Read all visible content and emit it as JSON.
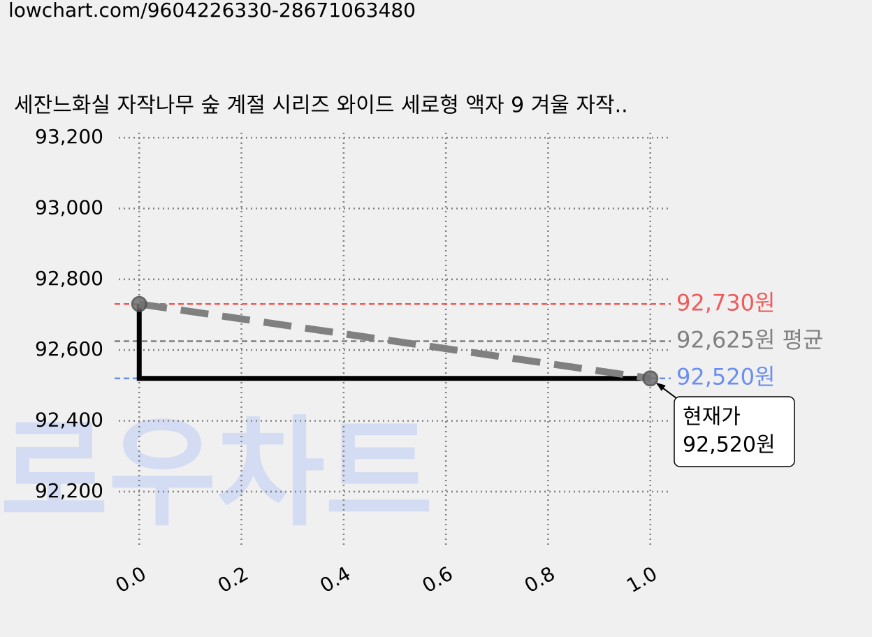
{
  "header": {
    "url": "lowchart.com/9604226330-28671063480"
  },
  "watermark": "로우차트",
  "chart_data": {
    "type": "line",
    "title": "세잔느화실 자작나무 숲 계절 시리즈 와이드 세로형 액자 9 겨울 자작..",
    "x": [
      0,
      1
    ],
    "series": [
      {
        "color": "#000000",
        "values": [
          92730,
          92520
        ],
        "step": "pre"
      },
      {
        "color": "#808080",
        "values": [
          92730,
          92520
        ],
        "dashed": true,
        "markers": true
      }
    ],
    "xlim": [
      -0.04,
      1.04
    ],
    "ylim": [
      92040,
      93214
    ],
    "xticks": [
      {
        "value": 0,
        "label": "0.0"
      },
      0.2,
      0.4,
      0.6,
      0.8,
      {
        "value": 1,
        "label": "1.0"
      }
    ],
    "yticks": [
      {
        "value": 92200,
        "label": "92,200"
      },
      {
        "value": 92400,
        "label": "92,400"
      },
      {
        "value": 92600,
        "label": "92,600"
      },
      {
        "value": 92800,
        "label": "92,800"
      },
      {
        "value": 93000,
        "label": "93,000"
      },
      {
        "value": 93200,
        "label": "93,200"
      }
    ],
    "grid": true,
    "hlines": [
      {
        "value": 92730,
        "label": "92,730원",
        "color": "#f05a5a"
      },
      {
        "value": 92625,
        "label": "92,625원 평균",
        "color": "#808080"
      },
      {
        "value": 92520,
        "label": "92,520원",
        "color": "#6b8ff0"
      }
    ],
    "annotation": [
      "현재가",
      "92,520원"
    ]
  }
}
